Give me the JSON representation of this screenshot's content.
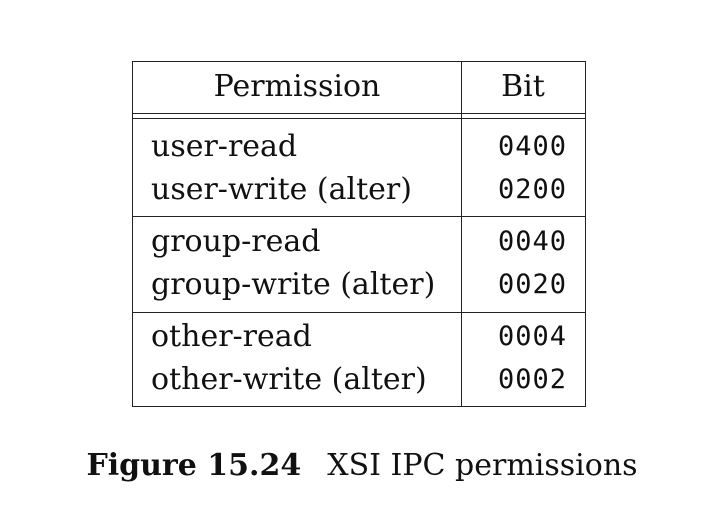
{
  "table": {
    "headers": {
      "permission": "Permission",
      "bit": "Bit"
    },
    "groups": [
      {
        "rows": [
          {
            "permission": "user-read",
            "bit": "0400"
          },
          {
            "permission": "user-write (alter)",
            "bit": "0200"
          }
        ]
      },
      {
        "rows": [
          {
            "permission": "group-read",
            "bit": "0040"
          },
          {
            "permission": "group-write (alter)",
            "bit": "0020"
          }
        ]
      },
      {
        "rows": [
          {
            "permission": "other-read",
            "bit": "0004"
          },
          {
            "permission": "other-write (alter)",
            "bit": "0002"
          }
        ]
      }
    ]
  },
  "caption": {
    "label": "Figure 15.24",
    "text": "XSI IPC permissions"
  }
}
